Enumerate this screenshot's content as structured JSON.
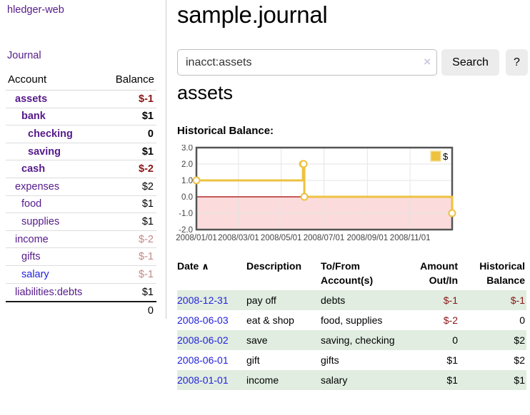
{
  "colors": {
    "link_purple": "#551a8b",
    "link_blue": "#2222dd",
    "negative_strong": "#8b1515",
    "negative_soft": "#c48888",
    "row_stripe_green": "#e0ede0"
  },
  "sidebar": {
    "brand": "hledger-web",
    "nav_journal": "Journal",
    "table": {
      "account_header": "Account",
      "balance_header": "Balance",
      "rows": [
        {
          "name": "assets",
          "balance": "$-1",
          "level": 1,
          "emphasis": true,
          "balance_tone": "neg-strong",
          "link_style": "visited"
        },
        {
          "name": "bank",
          "balance": "$1",
          "level": 2,
          "emphasis": true,
          "balance_tone": "normal",
          "link_style": "visited"
        },
        {
          "name": "checking",
          "balance": "0",
          "level": 3,
          "emphasis": true,
          "balance_tone": "normal",
          "link_style": "visited"
        },
        {
          "name": "saving",
          "balance": "$1",
          "level": 3,
          "emphasis": true,
          "balance_tone": "normal",
          "link_style": "visited"
        },
        {
          "name": "cash",
          "balance": "$-2",
          "level": 2,
          "emphasis": true,
          "balance_tone": "neg-strong",
          "link_style": "visited"
        },
        {
          "name": "expenses",
          "balance": "$2",
          "level": 1,
          "emphasis": false,
          "balance_tone": "normal",
          "link_style": "visited"
        },
        {
          "name": "food",
          "balance": "$1",
          "level": 2,
          "emphasis": false,
          "balance_tone": "normal",
          "link_style": "visited"
        },
        {
          "name": "supplies",
          "balance": "$1",
          "level": 2,
          "emphasis": false,
          "balance_tone": "normal",
          "link_style": "visited"
        },
        {
          "name": "income",
          "balance": "$-2",
          "level": 1,
          "emphasis": false,
          "balance_tone": "neg-soft",
          "link_style": "visited"
        },
        {
          "name": "gifts",
          "balance": "$-1",
          "level": 2,
          "emphasis": false,
          "balance_tone": "neg-soft",
          "link_style": "visited"
        },
        {
          "name": "salary",
          "balance": "$-1",
          "level": 2,
          "emphasis": false,
          "balance_tone": "neg-soft",
          "link_style": "unvisited"
        },
        {
          "name": "liabilities:debts",
          "balance": "$1",
          "level": 1,
          "emphasis": false,
          "balance_tone": "normal",
          "link_style": "visited"
        }
      ],
      "total": "0"
    }
  },
  "header": {
    "title": "sample.journal"
  },
  "search": {
    "value": "inacct:assets",
    "clear_icon": "×",
    "search_button": "Search",
    "help_button": "?"
  },
  "account_view": {
    "heading": "assets",
    "chart_title": "Historical Balance:"
  },
  "chart_data": {
    "type": "line",
    "step": true,
    "title": "Historical Balance",
    "legend": [
      {
        "label": "$",
        "color": "#edc240"
      }
    ],
    "legend_position": "top-right",
    "x": [
      "2008-01-01",
      "2008-06-01",
      "2008-06-02",
      "2008-06-03",
      "2008-12-31"
    ],
    "values": [
      1,
      2,
      2,
      0,
      -1
    ],
    "xrange": [
      "2008-01-01",
      "2008-12-31"
    ],
    "ylim": [
      -2,
      3
    ],
    "yticks": [
      3,
      2,
      1,
      0,
      -1,
      -2
    ],
    "ytick_labels": [
      "3.0",
      "2.0",
      "1.0",
      "0.0",
      "-1.0",
      "-2.0"
    ],
    "xtick_labels": [
      "2008/01/01",
      "2008/03/01",
      "2008/05/01",
      "2008/07/01",
      "2008/09/01",
      "2008/11/01"
    ],
    "grid": true,
    "negative_region_fill": true,
    "line_color": "#edc240",
    "marker_fill": "#ffffff",
    "negative_fill": "#fbdbdb",
    "zero_line": "#a40000",
    "grid_color": "#e5e5e5",
    "border_color": "#545454",
    "tick_label_color": "#444444"
  },
  "register": {
    "headers": {
      "date": "Date",
      "sort_icon": "∧",
      "description": "Description",
      "accounts": "To/From Account(s)",
      "amount": "Amount Out/In",
      "balance": "Historical Balance"
    },
    "rows": [
      {
        "date": "2008-12-31",
        "description": "pay off",
        "accounts": "debts",
        "amount": "$-1",
        "amount_tone": "neg",
        "balance": "$-1",
        "balance_tone": "neg"
      },
      {
        "date": "2008-06-03",
        "description": "eat & shop",
        "accounts": "food, supplies",
        "amount": "$-2",
        "amount_tone": "neg",
        "balance": "0",
        "balance_tone": "normal"
      },
      {
        "date": "2008-06-02",
        "description": "save",
        "accounts": "saving, checking",
        "amount": "0",
        "amount_tone": "normal",
        "balance": "$2",
        "balance_tone": "normal"
      },
      {
        "date": "2008-06-01",
        "description": "gift",
        "accounts": "gifts",
        "amount": "$1",
        "amount_tone": "normal",
        "balance": "$2",
        "balance_tone": "normal"
      },
      {
        "date": "2008-01-01",
        "description": "income",
        "accounts": "salary",
        "amount": "$1",
        "amount_tone": "normal",
        "balance": "$1",
        "balance_tone": "normal"
      }
    ]
  }
}
